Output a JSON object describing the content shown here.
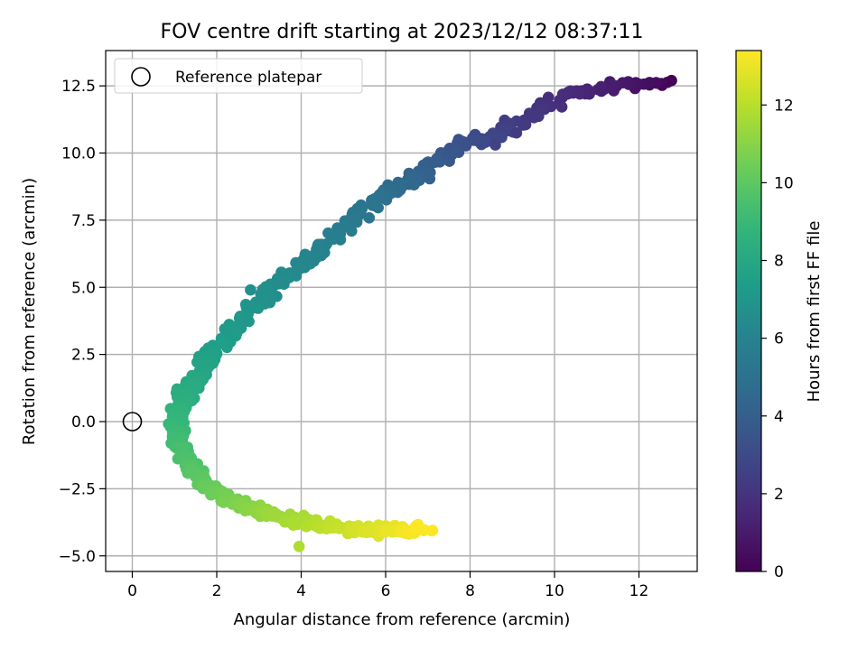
{
  "chart_data": {
    "type": "scatter",
    "title": "FOV centre drift starting at 2023/12/12 08:37:11",
    "xlabel": "Angular distance from reference (arcmin)",
    "ylabel": "Rotation from reference (arcmin)",
    "xlim": [
      -0.6,
      13.4
    ],
    "ylim": [
      -5.5,
      13.8
    ],
    "x_ticks": [
      0,
      2,
      4,
      6,
      8,
      10,
      12
    ],
    "y_ticks": [
      -5.0,
      -2.5,
      0.0,
      2.5,
      5.0,
      7.5,
      10.0,
      12.5
    ],
    "x_tick_labels": [
      "0",
      "2",
      "4",
      "6",
      "8",
      "10",
      "12"
    ],
    "y_tick_labels": [
      "−5.0",
      "−2.5",
      "0.0",
      "2.5",
      "5.0",
      "7.5",
      "10.0",
      "12.5"
    ],
    "grid": true,
    "legend": {
      "placement": "top-left",
      "entries": [
        {
          "label": "Reference platepar",
          "marker": "open-circle",
          "color": "#000000"
        }
      ]
    },
    "reference_point": {
      "x": 0,
      "y": 0
    },
    "colorbar": {
      "label": "Hours from first FF file",
      "colormap": "viridis",
      "range": [
        0,
        13.4
      ],
      "ticks": [
        0,
        2,
        4,
        6,
        8,
        10,
        12
      ],
      "tick_labels": [
        "0",
        "2",
        "4",
        "6",
        "8",
        "10",
        "12"
      ]
    },
    "path_knots_hours_x_y": [
      [
        0.0,
        12.75,
        12.55
      ],
      [
        0.5,
        12.2,
        12.6
      ],
      [
        0.9,
        11.6,
        12.5
      ],
      [
        1.6,
        10.3,
        12.2
      ],
      [
        2.2,
        9.3,
        11.3
      ],
      [
        2.8,
        8.5,
        10.6
      ],
      [
        3.5,
        7.5,
        10.1
      ],
      [
        4.2,
        6.8,
        9.2
      ],
      [
        5.0,
        5.8,
        8.3
      ],
      [
        5.6,
        5.0,
        7.2
      ],
      [
        6.0,
        4.3,
        6.2
      ],
      [
        6.5,
        3.5,
        5.2
      ],
      [
        7.0,
        2.7,
        4.0
      ],
      [
        7.5,
        2.0,
        2.7
      ],
      [
        8.0,
        1.5,
        1.5
      ],
      [
        8.5,
        1.1,
        0.6
      ],
      [
        9.0,
        1.0,
        -0.3
      ],
      [
        9.5,
        1.2,
        -1.3
      ],
      [
        10.0,
        1.6,
        -2.2
      ],
      [
        10.6,
        2.3,
        -2.9
      ],
      [
        11.2,
        3.1,
        -3.4
      ],
      [
        12.0,
        4.5,
        -3.9
      ],
      [
        12.8,
        5.9,
        -4.05
      ],
      [
        13.4,
        6.9,
        -4.0
      ]
    ],
    "point_count": 700,
    "scatter_x_spread": 0.28,
    "scatter_y_spread": 0.22,
    "isolated_points": [
      {
        "x": 2.8,
        "y": 4.9,
        "hours": 6.6
      },
      {
        "x": 3.95,
        "y": -4.65,
        "hours": 11.8
      },
      {
        "x": 8.6,
        "y": 10.3,
        "hours": 2.6
      },
      {
        "x": 9.1,
        "y": 10.75,
        "hours": 2.3
      }
    ]
  }
}
